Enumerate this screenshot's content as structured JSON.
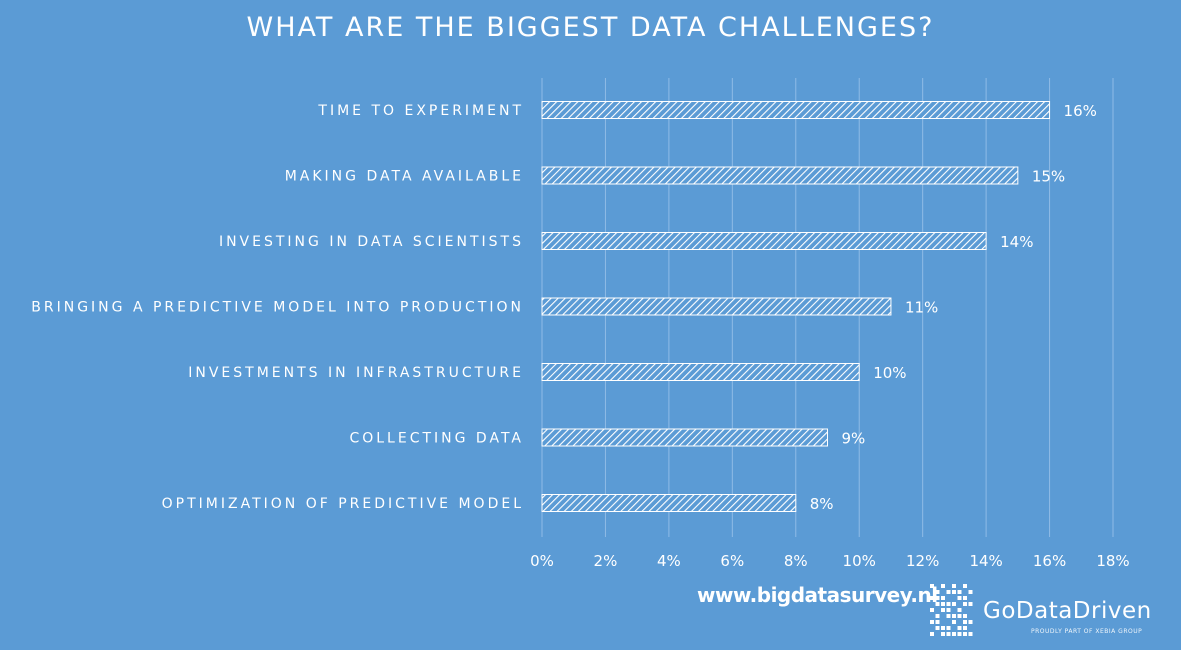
{
  "colors": {
    "background": "#5b9bd5",
    "bar_stroke": "#ffffff",
    "bar_hatch": "#ffffff",
    "text": "#ffffff",
    "gridline": "#8fbbe6"
  },
  "chart_data": {
    "type": "bar",
    "orientation": "horizontal",
    "title": "WHAT ARE THE BIGGEST DATA CHALLENGES?",
    "categories": [
      "TIME TO EXPERIMENT",
      "MAKING DATA AVAILABLE",
      "INVESTING IN DATA SCIENTISTS",
      "BRINGING A PREDICTIVE MODEL INTO PRODUCTION",
      "INVESTMENTS IN INFRASTRUCTURE",
      "COLLECTING DATA",
      "OPTIMIZATION OF PREDICTIVE MODEL"
    ],
    "values": [
      16,
      15,
      14,
      11,
      10,
      9,
      8
    ],
    "data_labels": [
      "16%",
      "15%",
      "14%",
      "11%",
      "10%",
      "9%",
      "8%"
    ],
    "xlim": [
      0,
      18
    ],
    "x_ticks": [
      0,
      2,
      4,
      6,
      8,
      10,
      12,
      14,
      16,
      18
    ],
    "x_tick_labels": [
      "0%",
      "2%",
      "4%",
      "6%",
      "8%",
      "10%",
      "12%",
      "14%",
      "16%",
      "18%"
    ],
    "grid": "vertical",
    "fill": "diagonal-hatch",
    "legend": "none"
  },
  "footer": {
    "website": "www.bigdatasurvey.nl",
    "brand_name": "GoDataDriven",
    "brand_tagline": "PROUDLY PART OF XEBIA GROUP",
    "logo_icon": "godatadriven-pixel-logo-icon"
  }
}
